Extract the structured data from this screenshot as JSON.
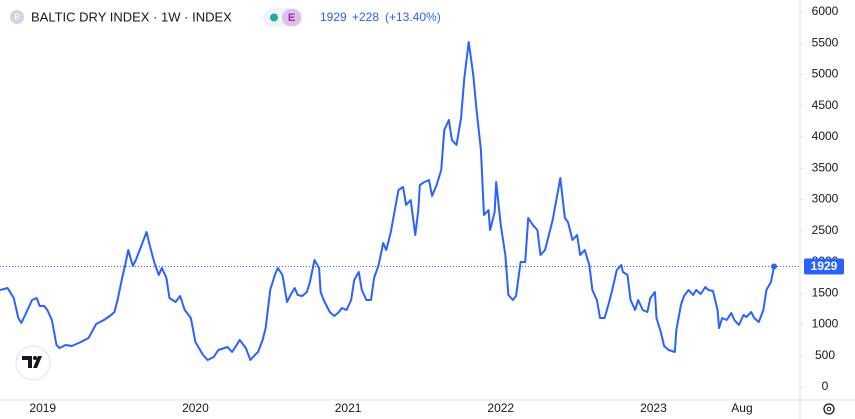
{
  "chart_data": {
    "type": "line",
    "title": "BALTIC DRY INDEX · 1W · INDEX",
    "badge": "E",
    "change": "+228",
    "change_pct": "(+13.40%)",
    "color": "#2962ff",
    "xlim": [
      2018.72,
      2023.96
    ],
    "ylim": [
      -208,
      6192
    ],
    "yticks": [
      0,
      500,
      1000,
      1500,
      2000,
      2500,
      3000,
      3500,
      4000,
      4500,
      5000,
      5500,
      6000
    ],
    "xticks": [
      {
        "value": 2019,
        "label": "2019"
      },
      {
        "value": 2020,
        "label": "2020"
      },
      {
        "value": 2021,
        "label": "2021"
      },
      {
        "value": 2022,
        "label": "2022"
      },
      {
        "value": 2023,
        "label": "2023"
      },
      {
        "value": 2023.58,
        "label": "Aug"
      }
    ],
    "x": [
      2018.72,
      2018.77,
      2018.81,
      2018.84,
      2018.86,
      2018.9,
      2018.93,
      2018.96,
      2018.98,
      2019.01,
      2019.03,
      2019.06,
      2019.09,
      2019.11,
      2019.15,
      2019.19,
      2019.25,
      2019.3,
      2019.35,
      2019.4,
      2019.44,
      2019.47,
      2019.49,
      2019.52,
      2019.54,
      2019.56,
      2019.59,
      2019.61,
      2019.64,
      2019.68,
      2019.7,
      2019.73,
      2019.76,
      2019.78,
      2019.81,
      2019.83,
      2019.87,
      2019.9,
      2019.93,
      2019.97,
      2020.0,
      2020.05,
      2020.08,
      2020.12,
      2020.15,
      2020.19,
      2020.21,
      2020.24,
      2020.27,
      2020.29,
      2020.33,
      2020.36,
      2020.39,
      2020.41,
      2020.44,
      2020.46,
      2020.49,
      2020.52,
      2020.54,
      2020.57,
      2020.6,
      2020.62,
      2020.65,
      2020.67,
      2020.7,
      2020.73,
      2020.75,
      2020.78,
      2020.81,
      2020.82,
      2020.84,
      2020.88,
      2020.91,
      2020.94,
      2020.96,
      2020.99,
      2021.02,
      2021.04,
      2021.07,
      2021.09,
      2021.12,
      2021.15,
      2021.17,
      2021.2,
      2021.23,
      2021.25,
      2021.28,
      2021.3,
      2021.33,
      2021.36,
      2021.38,
      2021.41,
      2021.44,
      2021.46,
      2021.47,
      2021.5,
      2021.53,
      2021.55,
      2021.58,
      2021.61,
      2021.63,
      2021.66,
      2021.68,
      2021.71,
      2021.74,
      2021.76,
      2021.79,
      2021.82,
      2021.84,
      2021.87,
      2021.89,
      2021.92,
      2021.93,
      2021.96,
      2021.97,
      2022.0,
      2022.03,
      2022.05,
      2022.08,
      2022.1,
      2022.13,
      2022.16,
      2022.18,
      2022.21,
      2022.24,
      2022.26,
      2022.29,
      2022.31,
      2022.34,
      2022.37,
      2022.39,
      2022.42,
      2022.44,
      2022.47,
      2022.5,
      2022.52,
      2022.55,
      2022.58,
      2022.6,
      2022.63,
      2022.65,
      2022.68,
      2022.71,
      2022.73,
      2022.76,
      2022.79,
      2022.8,
      2022.83,
      2022.85,
      2022.88,
      2022.9,
      2022.93,
      2022.96,
      2022.98,
      2023.01,
      2023.02,
      2023.05,
      2023.07,
      2023.1,
      2023.14,
      2023.15,
      2023.18,
      2023.2,
      2023.23,
      2023.26,
      2023.28,
      2023.31,
      2023.34,
      2023.36,
      2023.39,
      2023.42,
      2023.43,
      2023.45,
      2023.48,
      2023.51,
      2023.53,
      2023.56,
      2023.59,
      2023.61,
      2023.64,
      2023.66,
      2023.69,
      2023.72,
      2023.74,
      2023.77,
      2023.79
    ],
    "series": [
      {
        "name": "BALTIC DRY INDEX",
        "color": "#2962ff",
        "values": [
          1552,
          1584,
          1424,
          1104,
          1024,
          1232,
          1392,
          1424,
          1296,
          1296,
          1232,
          1072,
          672,
          624,
          672,
          656,
          720,
          784,
          1008,
          1072,
          1136,
          1200,
          1392,
          1744,
          1952,
          2192,
          1936,
          2032,
          2224,
          2480,
          2272,
          2000,
          1792,
          1904,
          1744,
          1424,
          1360,
          1456,
          1232,
          1104,
          720,
          512,
          432,
          480,
          592,
          624,
          640,
          560,
          672,
          752,
          624,
          432,
          512,
          560,
          752,
          944,
          1552,
          1792,
          1904,
          1792,
          1360,
          1456,
          1584,
          1472,
          1456,
          1520,
          1680,
          2032,
          1904,
          1520,
          1392,
          1200,
          1136,
          1200,
          1264,
          1232,
          1392,
          1712,
          1840,
          1552,
          1392,
          1392,
          1744,
          1952,
          2304,
          2192,
          2480,
          2752,
          3152,
          3200,
          2912,
          2992,
          2432,
          2832,
          3232,
          3280,
          3312,
          3056,
          3232,
          3472,
          4112,
          4272,
          3952,
          3872,
          4304,
          4912,
          5520,
          4992,
          4464,
          3792,
          2752,
          2832,
          2512,
          2800,
          3280,
          2592,
          2112,
          1472,
          1392,
          1456,
          2000,
          2000,
          2704,
          2592,
          2512,
          2112,
          2192,
          2384,
          2672,
          3072,
          3344,
          2704,
          2640,
          2352,
          2432,
          2112,
          2192,
          1952,
          1552,
          1392,
          1104,
          1104,
          1360,
          1552,
          1872,
          1952,
          1840,
          1792,
          1392,
          1232,
          1392,
          1232,
          1200,
          1424,
          1520,
          1104,
          864,
          656,
          592,
          560,
          912,
          1312,
          1456,
          1552,
          1472,
          1552,
          1488,
          1600,
          1552,
          1536,
          1232,
          944,
          1104,
          1072,
          1184,
          1072,
          992,
          1152,
          1120,
          1200,
          1104,
          1040,
          1232,
          1552,
          1680,
          1929
        ]
      }
    ]
  }
}
